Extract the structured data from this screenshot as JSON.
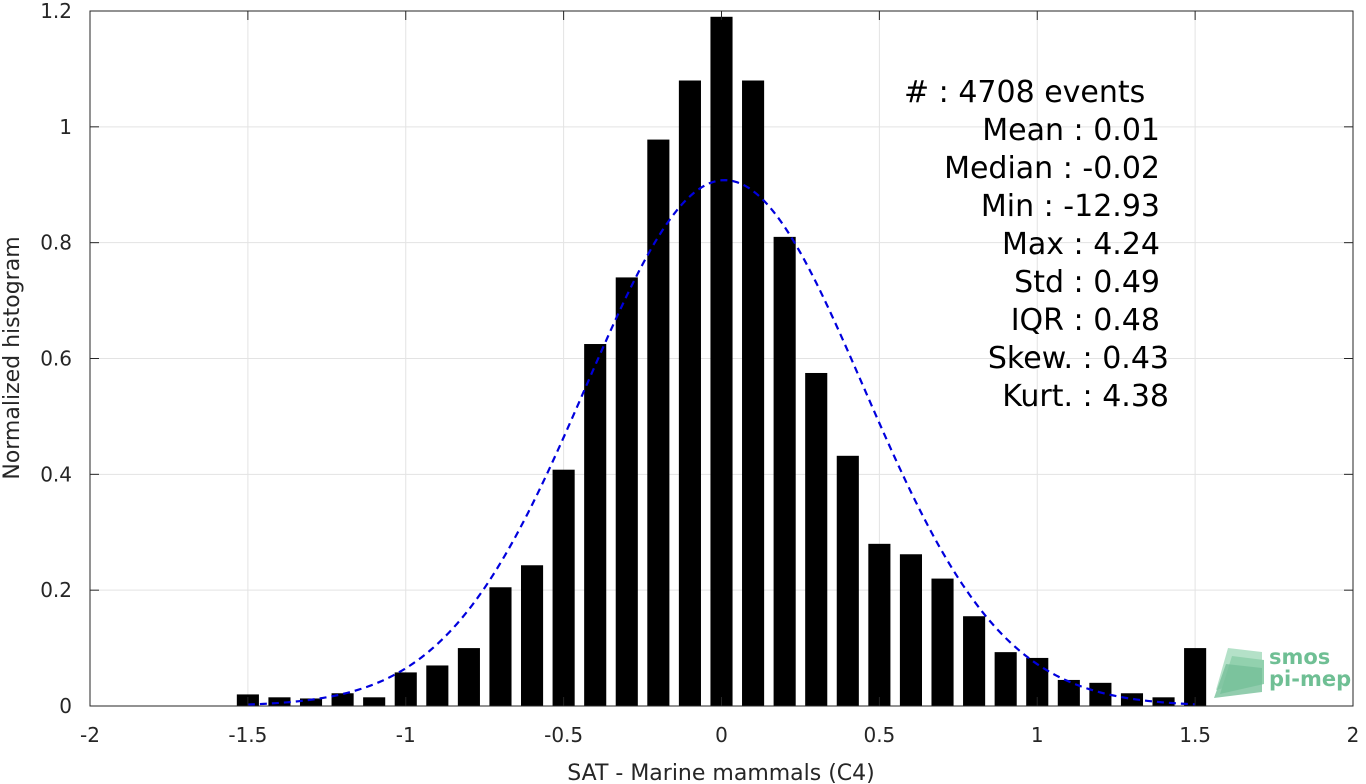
{
  "chart_data": {
    "type": "bar",
    "xlabel": "SAT - Marine mammals (C4)",
    "ylabel": "Normalized histogram",
    "xlim": [
      -2,
      2
    ],
    "ylim": [
      0,
      1.2
    ],
    "grid": true,
    "x_ticks": [
      "-2",
      "-1.5",
      "-1",
      "-0.5",
      "0",
      "0.5",
      "1",
      "1.5",
      "2"
    ],
    "y_ticks": [
      "0",
      "0.2",
      "0.4",
      "0.6",
      "0.8",
      "1",
      "1.2"
    ],
    "bar_width": 0.07,
    "x": [
      -1.5,
      -1.4,
      -1.3,
      -1.2,
      -1.1,
      -1.0,
      -0.9,
      -0.8,
      -0.7,
      -0.6,
      -0.5,
      -0.4,
      -0.3,
      -0.2,
      -0.1,
      0.0,
      0.1,
      0.2,
      0.3,
      0.4,
      0.5,
      0.6,
      0.7,
      0.8,
      0.9,
      1.0,
      1.1,
      1.2,
      1.3,
      1.4,
      1.5
    ],
    "values": [
      0.02,
      0.015,
      0.013,
      0.022,
      0.015,
      0.058,
      0.07,
      0.1,
      0.205,
      0.243,
      0.408,
      0.625,
      0.74,
      0.978,
      1.08,
      1.19,
      1.08,
      0.81,
      0.575,
      0.432,
      0.28,
      0.262,
      0.22,
      0.155,
      0.093,
      0.083,
      0.045,
      0.04,
      0.022,
      0.015,
      0.1
    ],
    "fit_curve": {
      "style": "dashed",
      "color": "#0000dd",
      "mean": 0.01,
      "std": 0.44,
      "peak": 0.908,
      "x_range": [
        -1.5,
        1.5
      ]
    },
    "bar_color": "#000000",
    "stats": [
      "#  : 4708 events",
      "Mean : 0.01",
      "Median : -0.02",
      "Min : -12.93",
      "Max : 4.24",
      "Std : 0.49",
      "IQR : 0.48",
      "Skew. : 0.43",
      "Kurt. : 4.38"
    ]
  },
  "logo": {
    "line1": "smos",
    "line2": "pi-mep",
    "color": "#6fbf94"
  }
}
